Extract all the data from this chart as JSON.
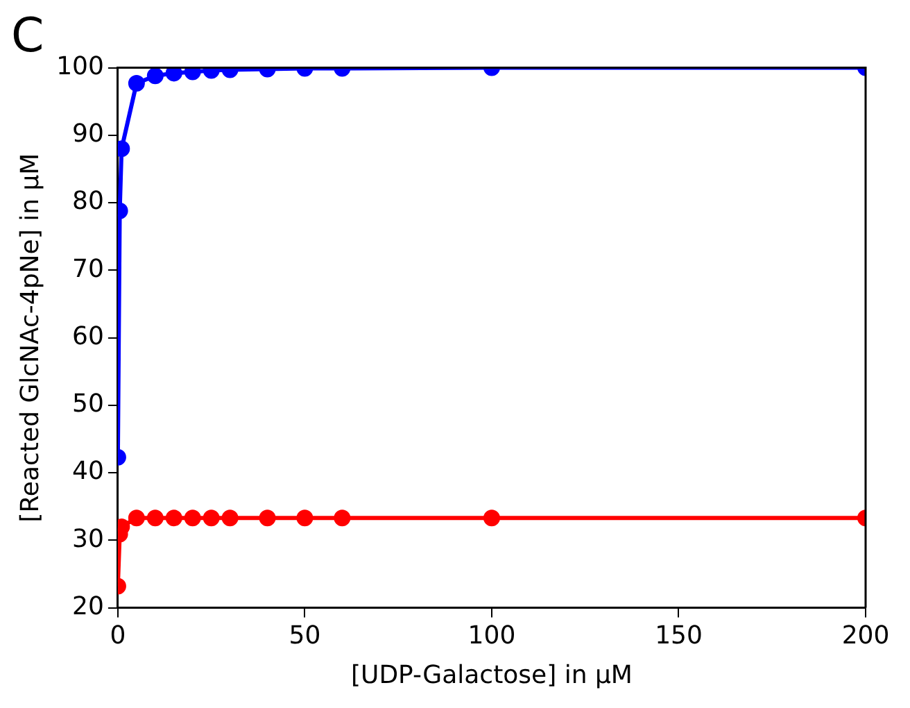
{
  "chart_data": {
    "type": "line",
    "title": "C",
    "xlabel": "[UDP-Galactose] in μM",
    "ylabel": "[Reacted GlcNAc-4pNe] in μM",
    "x": [
      0,
      0.5,
      1,
      5,
      10,
      15,
      20,
      25,
      30,
      40,
      50,
      60,
      100,
      200
    ],
    "series": [
      {
        "color": "#0000ff",
        "values": [
          42.3,
          78.8,
          88,
          97.7,
          98.8,
          99.2,
          99.4,
          99.6,
          99.7,
          99.8,
          99.9,
          99.9,
          100,
          100
        ]
      },
      {
        "color": "#ff0000",
        "values": [
          23.2,
          30.9,
          32,
          33.3,
          33.3,
          33.3,
          33.3,
          33.3,
          33.3,
          33.3,
          33.3,
          33.3,
          33.3,
          33.3
        ]
      }
    ],
    "xlim": [
      0,
      200
    ],
    "xticks": [
      0,
      50,
      100,
      150,
      200
    ],
    "ylim": [
      20,
      100
    ],
    "yticks": [
      20,
      30,
      40,
      50,
      60,
      70,
      80,
      90,
      100
    ],
    "grid": false,
    "legend": false,
    "marker": "circle",
    "line_style": "solid"
  }
}
